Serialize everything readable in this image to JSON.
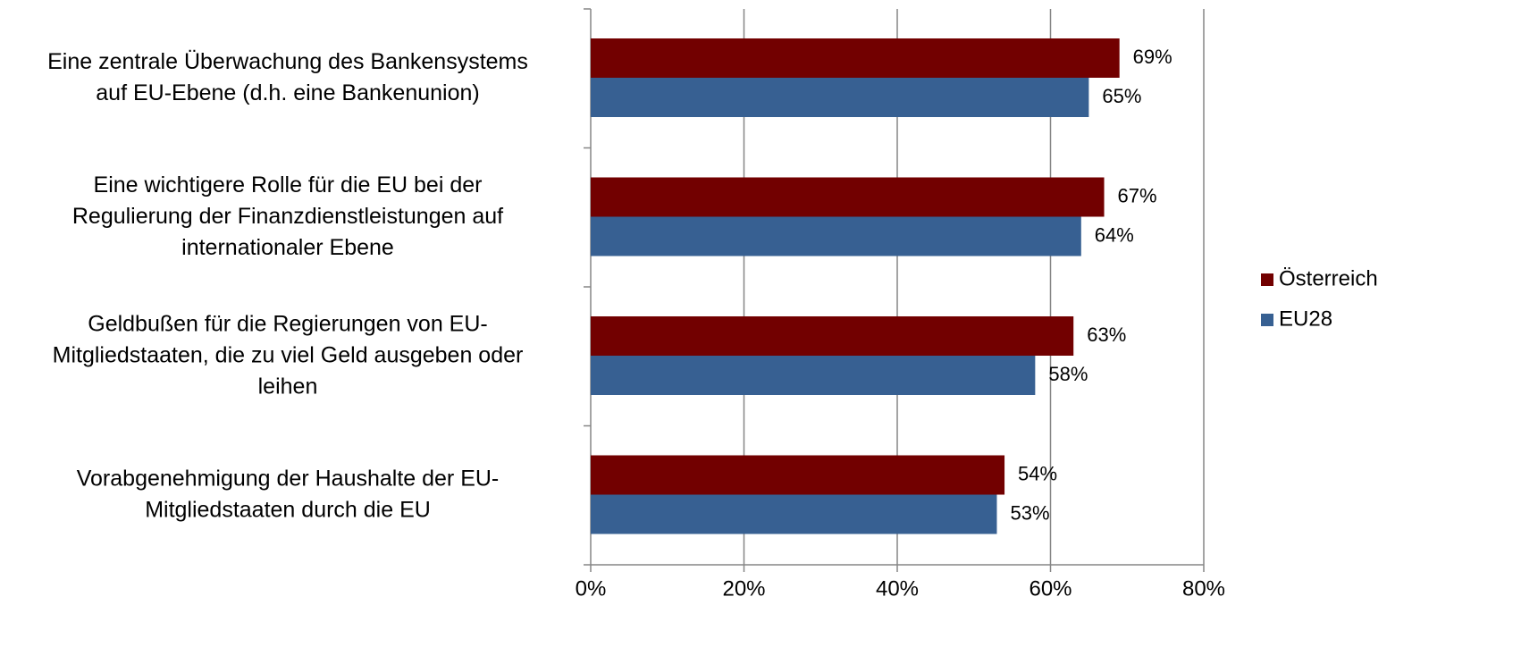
{
  "chart_data": {
    "type": "bar",
    "orientation": "horizontal",
    "categories": [
      [
        "Eine zentrale Überwachung des Bankensystems",
        "auf EU-Ebene (d.h. eine Bankenunion)"
      ],
      [
        "Eine wichtigere Rolle für die EU bei der",
        "Regulierung der Finanzdienstleistungen auf",
        "internationaler Ebene"
      ],
      [
        "Geldbußen für die Regierungen von EU-",
        "Mitgliedstaaten, die zu viel Geld ausgeben oder",
        "leihen"
      ],
      [
        "Vorabgenehmigung der Haushalte der EU-",
        "Mitgliedstaaten durch die EU"
      ]
    ],
    "series": [
      {
        "name": "Österreich",
        "color": "#720000",
        "values": [
          69,
          67,
          63,
          54
        ],
        "value_labels": [
          "69%",
          "67%",
          "63%",
          "54%"
        ]
      },
      {
        "name": "EU28",
        "color": "#376092",
        "values": [
          65,
          64,
          58,
          53
        ],
        "value_labels": [
          "65%",
          "64%",
          "58%",
          "53%"
        ]
      }
    ],
    "xlim": [
      0,
      80
    ],
    "xticks": [
      {
        "value": 0,
        "label": "0%"
      },
      {
        "value": 20,
        "label": "20%"
      },
      {
        "value": 40,
        "label": "40%"
      },
      {
        "value": 60,
        "label": "60%"
      },
      {
        "value": 80,
        "label": "80%"
      }
    ],
    "grid": true,
    "legend": "right"
  }
}
